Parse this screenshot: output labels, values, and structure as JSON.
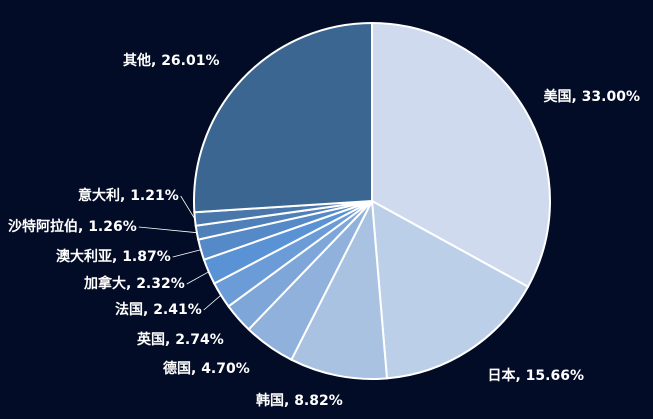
{
  "chart_data": {
    "type": "pie",
    "title": "",
    "start_angle_deg": 0,
    "direction": "clockwise",
    "slices": [
      {
        "label": "美国",
        "value": 33.0,
        "value_label": "33.00%",
        "color": "#cfdaef"
      },
      {
        "label": "日本",
        "value": 15.66,
        "value_label": "15.66%",
        "color": "#bccfe8"
      },
      {
        "label": "韩国",
        "value": 8.82,
        "value_label": "8.82%",
        "color": "#a9c2e2"
      },
      {
        "label": "德国",
        "value": 4.7,
        "value_label": "4.70%",
        "color": "#8fb1dc"
      },
      {
        "label": "英国",
        "value": 2.74,
        "value_label": "2.74%",
        "color": "#7ea6d9"
      },
      {
        "label": "法国",
        "value": 2.41,
        "value_label": "2.41%",
        "color": "#6c9cd8"
      },
      {
        "label": "加拿大",
        "value": 2.32,
        "value_label": "2.32%",
        "color": "#5a92d6"
      },
      {
        "label": "澳大利亚",
        "value": 1.87,
        "value_label": "1.87%",
        "color": "#5589c7"
      },
      {
        "label": "沙特阿拉伯",
        "value": 1.26,
        "value_label": "1.26%",
        "color": "#4f80b9"
      },
      {
        "label": "意大利",
        "value": 1.21,
        "value_label": "1.21%",
        "color": "#4a77ab"
      },
      {
        "label": "其他",
        "value": 26.01,
        "value_label": "26.01%",
        "color": "#3a6691"
      }
    ]
  }
}
